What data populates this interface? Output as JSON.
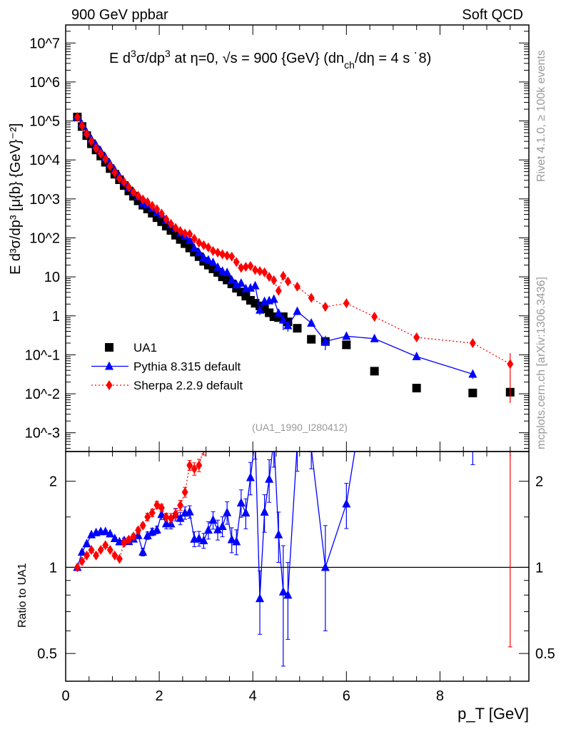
{
  "header": {
    "left": "900 GeV ppbar",
    "right": "Soft QCD",
    "side_top": "Rivet 4.1.0, ≥ 100k events",
    "side_bottom": "mcplots.cern.ch [arXiv:1306.3436]",
    "analysis_id": "(UA1_1990_I280412)"
  },
  "colors": {
    "data": "#000000",
    "pythia": "#0000ff",
    "sherpa": "#ff0000",
    "annotation": "#999999"
  },
  "chart_data": {
    "type": "scatter",
    "title": "E  d³σ/dp³ at η=0, √s = 900 {GeV} (dn_ch/dη = 4 s ˙8)",
    "title_parts": {
      "a": "E   d",
      "b": "3",
      "c": "σ/dp",
      "d": "3",
      "e": " at η=0, √s = 900 {GeV} (dn",
      "f": "ch",
      "g": "/dη = 4 s ˙8)"
    },
    "xlabel": "p_T [GeV]",
    "xlabel_parts": {
      "main": "p",
      "sub": "T",
      "unit": " [GeV]"
    },
    "ylabel": "E d³σ/dp³ [μ{b} {GeV}⁻²]",
    "ratio_ylabel": "Ratio to UA1",
    "xlim": [
      0,
      9.9
    ],
    "ylim": [
      0.00033,
      29000000
    ],
    "ratio_ylim": [
      0.4,
      2.54
    ],
    "yscale": "log",
    "ratio_yscale": "log",
    "x_ticks": [
      "0",
      "2",
      "4",
      "6",
      "8"
    ],
    "y_ticks": [
      "10^7",
      "10^6",
      "10^5",
      "10^4",
      "10^3",
      "10^2",
      "10",
      "1",
      "10^-1",
      "10^-2",
      "10^-3"
    ],
    "ratio_ticks": [
      "0.5",
      "1",
      "2"
    ],
    "legend_position": "bottom-left",
    "x": [
      0.25,
      0.35,
      0.45,
      0.55,
      0.65,
      0.75,
      0.85,
      0.95,
      1.05,
      1.15,
      1.25,
      1.35,
      1.45,
      1.55,
      1.65,
      1.75,
      1.85,
      1.95,
      2.05,
      2.15,
      2.25,
      2.35,
      2.45,
      2.55,
      2.65,
      2.75,
      2.85,
      2.95,
      3.05,
      3.15,
      3.25,
      3.35,
      3.45,
      3.55,
      3.65,
      3.75,
      3.85,
      3.95,
      4.05,
      4.15,
      4.25,
      4.35,
      4.45,
      4.55,
      4.65,
      4.75,
      4.95,
      5.25,
      5.55,
      6.0,
      6.6,
      7.5,
      8.7,
      9.5
    ],
    "series": [
      {
        "name": "UA1",
        "marker": "square",
        "values": [
          126000,
          72000,
          42000,
          26000,
          18000,
          12600,
          8700,
          6000,
          4300,
          3100,
          2200,
          1600,
          1170,
          890,
          690,
          550,
          430,
          330,
          260,
          200,
          155,
          117,
          91,
          71,
          55,
          43,
          33,
          25,
          20,
          16,
          13,
          10,
          8.3,
          6.6,
          5.1,
          4.1,
          3.2,
          2.5,
          2.1,
          1.8,
          1.5,
          1.2,
          0.95,
          0.9,
          0.95,
          0.7,
          0.48,
          0.25,
          0.22,
          0.18,
          0.038,
          0.014,
          0.0105,
          0.011
        ]
      },
      {
        "name": "Pythia 8.315 default",
        "marker": "triangle",
        "line": "solid",
        "values": [
          126000,
          81400,
          50800,
          33800,
          23800,
          16800,
          11600,
          7860,
          5420,
          3810,
          2730,
          1970,
          1470,
          1150,
          780,
          710,
          572,
          446,
          398,
          284,
          220,
          179,
          135,
          110,
          86,
          54,
          41.6,
          31,
          27,
          23.4,
          17.6,
          13.9,
          12.9,
          8.25,
          6.27,
          6.89,
          4.96,
          5.15,
          5.9,
          1.4,
          2.34,
          2.44,
          2.66,
          1.17,
          0.78,
          0.56,
          1.3,
          0.65,
          0.22,
          0.3,
          0.26,
          0.09,
          0.032,
          null
        ],
        "rel_err": [
          0.01,
          0.01,
          0.01,
          0.01,
          0.01,
          0.01,
          0.01,
          0.01,
          0.01,
          0.01,
          0.02,
          0.02,
          0.02,
          0.02,
          0.03,
          0.03,
          0.03,
          0.03,
          0.04,
          0.04,
          0.04,
          0.05,
          0.05,
          0.05,
          0.05,
          0.06,
          0.06,
          0.06,
          0.07,
          0.07,
          0.08,
          0.08,
          0.09,
          0.1,
          0.1,
          0.11,
          0.12,
          0.13,
          0.15,
          0.25,
          0.15,
          0.17,
          0.2,
          0.2,
          0.45,
          0.3,
          0.2,
          0.15,
          0.4,
          0.18,
          0.15,
          0.15,
          0.25,
          null
        ]
      },
      {
        "name": "Sherpa 2.2.9 default",
        "marker": "diamond",
        "line": "dotted",
        "values": [
          126000,
          75600,
          46200,
          29900,
          19800,
          14500,
          10400,
          6900,
          4730,
          3320,
          2680,
          2000,
          1500,
          1200,
          966,
          825,
          667,
          545,
          420,
          300,
          230,
          180,
          150,
          130,
          125,
          95,
          75,
          65,
          57,
          46,
          42,
          38,
          35,
          33,
          24,
          17,
          18,
          19,
          15,
          14,
          13,
          10,
          8.2,
          4.4,
          10.6,
          7.6,
          5.6,
          2.9,
          1.7,
          2.1,
          0.95,
          0.28,
          0.2,
          0.058
        ],
        "rel_err": [
          0.01,
          0.01,
          0.01,
          0.01,
          0.01,
          0.01,
          0.01,
          0.01,
          0.01,
          0.01,
          0.02,
          0.02,
          0.02,
          0.02,
          0.02,
          0.03,
          0.03,
          0.03,
          0.03,
          0.03,
          0.04,
          0.04,
          0.04,
          0.04,
          0.04,
          0.05,
          0.05,
          0.05,
          0.05,
          0.06,
          0.06,
          0.06,
          0.07,
          0.07,
          0.07,
          0.08,
          0.08,
          0.08,
          0.09,
          0.09,
          0.1,
          0.1,
          0.1,
          0.12,
          0.1,
          0.1,
          0.1,
          0.1,
          0.12,
          0.1,
          0.12,
          0.15,
          0.2,
          0.9
        ]
      }
    ]
  }
}
